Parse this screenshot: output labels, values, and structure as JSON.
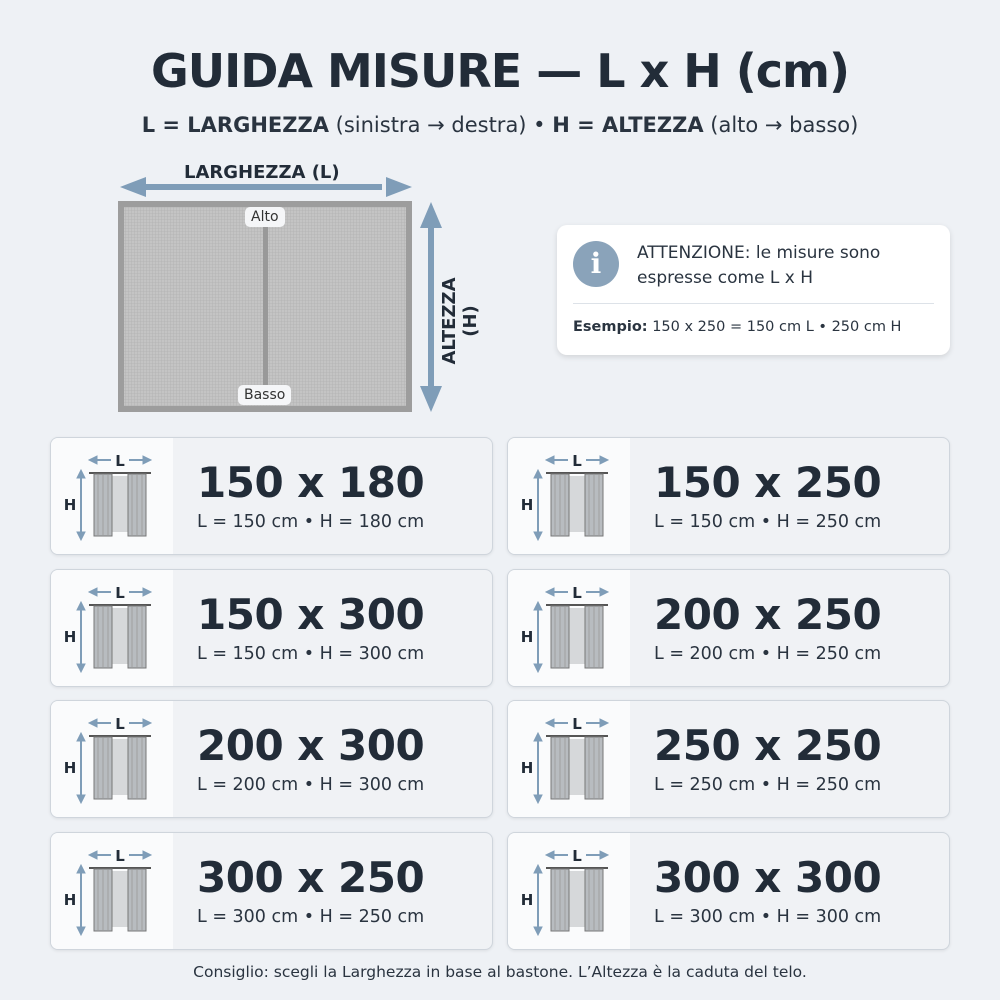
{
  "header": {
    "title": "GUIDA MISURE — L x H (cm)",
    "subtitle": {
      "l_key": "L = LARGHEZZA",
      "l_desc": " (sinistra → destra) • ",
      "h_key": "H = ALTEZZA",
      "h_desc": " (alto → basso)"
    }
  },
  "diagram": {
    "width_label": "LARGHEZZA (L)",
    "height_label": "ALTEZZA (H)",
    "top_tag": "Alto",
    "bottom_tag": "Basso"
  },
  "info": {
    "icon": "info-icon",
    "text": "ATTENZIONE: le misure sono espresse come L x H",
    "example_label": "Esempio:",
    "example_text": " 150 x 250 = 150 cm L • 250 cm H"
  },
  "icon_labels": {
    "l": "L",
    "h": "H"
  },
  "sizes": [
    {
      "title": "150 x 180",
      "detail": "L = 150 cm • H = 180 cm"
    },
    {
      "title": "150 x 250",
      "detail": "L = 150 cm • H = 250 cm"
    },
    {
      "title": "150 x 300",
      "detail": "L = 150 cm • H = 300 cm"
    },
    {
      "title": "200 x 250",
      "detail": "L = 200 cm • H = 250 cm"
    },
    {
      "title": "200 x 300",
      "detail": "L = 200 cm • H = 300 cm"
    },
    {
      "title": "250 x 250",
      "detail": "L = 250 cm • H = 250 cm"
    },
    {
      "title": "300 x 250",
      "detail": "L = 300 cm • H = 250 cm"
    },
    {
      "title": "300 x 300",
      "detail": "L = 300 cm • H = 300 cm"
    }
  ],
  "footer": "Consiglio: scegli la Larghezza in base al bastone. L’Altezza è la caduta del telo.",
  "colors": {
    "arrow": "#7f9db8",
    "text": "#222c38",
    "curtain": "#b8bcc0"
  }
}
